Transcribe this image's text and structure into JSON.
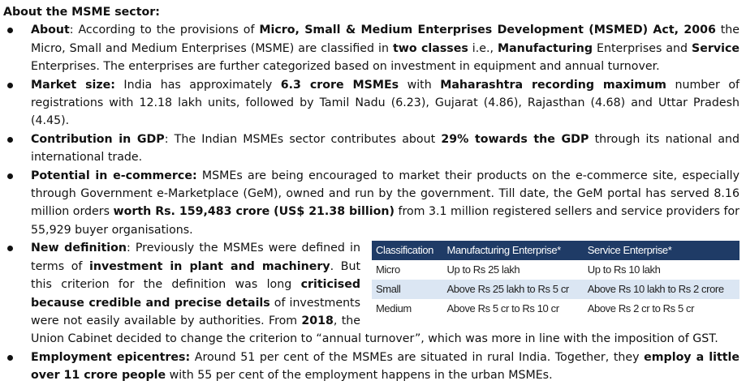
{
  "title": "About the MSME sector:",
  "items": [
    {
      "runs": [
        {
          "text": "About",
          "bold": true
        },
        {
          "text": ": According to the provisions of ",
          "bold": false
        },
        {
          "text": "Micro, Small & Medium Enterprises Development (MSMED) Act, 2006",
          "bold": true
        },
        {
          "text": " the Micro, Small and Medium Enterprises (MSME) are classified in ",
          "bold": false
        },
        {
          "text": "two classes",
          "bold": true
        },
        {
          "text": " i.e., ",
          "bold": false
        },
        {
          "text": "Manufacturing",
          "bold": true
        },
        {
          "text": " Enterprises and ",
          "bold": false
        },
        {
          "text": "Service",
          "bold": true
        },
        {
          "text": " Enterprises. The enterprises are further categorized based on investment in equipment and annual turnover.",
          "bold": false
        }
      ]
    },
    {
      "runs": [
        {
          "text": "Market size:",
          "bold": true
        },
        {
          "text": " India has approximately ",
          "bold": false
        },
        {
          "text": "6.3 crore MSMEs",
          "bold": true
        },
        {
          "text": " with ",
          "bold": false
        },
        {
          "text": "Maharashtra recording maximum",
          "bold": true
        },
        {
          "text": " number of registrations with 12.18 lakh units, followed by Tamil Nadu (6.23), Gujarat (4.86), Rajasthan (4.68) and Uttar Pradesh (4.45).",
          "bold": false
        }
      ]
    },
    {
      "runs": [
        {
          "text": "Contribution in GDP",
          "bold": true
        },
        {
          "text": ": The Indian MSMEs sector contributes about ",
          "bold": false
        },
        {
          "text": "29% towards the GDP",
          "bold": true
        },
        {
          "text": " through its national and international trade.",
          "bold": false
        }
      ]
    },
    {
      "runs": [
        {
          "text": "Potential in e-commerce:",
          "bold": true
        },
        {
          "text": " MSMEs are being encouraged to market their products on the e-commerce site, especially through Government e-Marketplace (GeM), owned and run by the government. Till date, the GeM portal has served 8.16 million orders ",
          "bold": false
        },
        {
          "text": "worth Rs. 159,483 crore (US$ 21.38 billion)",
          "bold": true
        },
        {
          "text": " from 3.1 million registered sellers and service providers for 55,929 buyer organisations.",
          "bold": false
        }
      ]
    },
    {
      "runs": [
        {
          "text": "New definition",
          "bold": true
        },
        {
          "text": ": Previously the MSMEs were defined in terms of ",
          "bold": false
        },
        {
          "text": "investment in plant and machinery",
          "bold": true
        },
        {
          "text": ". But this criterion for the definition was long ",
          "bold": false
        },
        {
          "text": "criticised because credible and precise details",
          "bold": true
        },
        {
          "text": " of investments were not easily available by authorities. From ",
          "bold": false
        },
        {
          "text": "2018",
          "bold": true
        },
        {
          "text": ", the Union Cabinet decided to change the criterion to “annual turnover”, which was more in line with the imposition of GST.",
          "bold": false
        }
      ]
    },
    {
      "runs": [
        {
          "text": "Employment epicentres:",
          "bold": true
        },
        {
          "text": " Around 51 per cent of the MSMEs are situated in rural India. Together, they ",
          "bold": false
        },
        {
          "text": "employ a little over 11 crore people",
          "bold": true
        },
        {
          "text": " with 55 per cent of the employment happens in the urban MSMEs.",
          "bold": false
        }
      ]
    }
  ],
  "table": {
    "headers": [
      "Classification",
      "Manufacturing Enterprise*",
      "Service Enterprise*"
    ],
    "rows": [
      [
        "Micro",
        "Up to Rs 25 lakh",
        "Up to Rs 10 lakh"
      ],
      [
        "Small",
        "Above Rs 25 lakh to Rs 5 cr",
        "Above Rs 10 lakh to Rs 2 crore"
      ],
      [
        "Medium",
        "Above Rs 5 cr to Rs 10 cr",
        "Above Rs 2 cr to Rs 5 cr"
      ]
    ]
  }
}
